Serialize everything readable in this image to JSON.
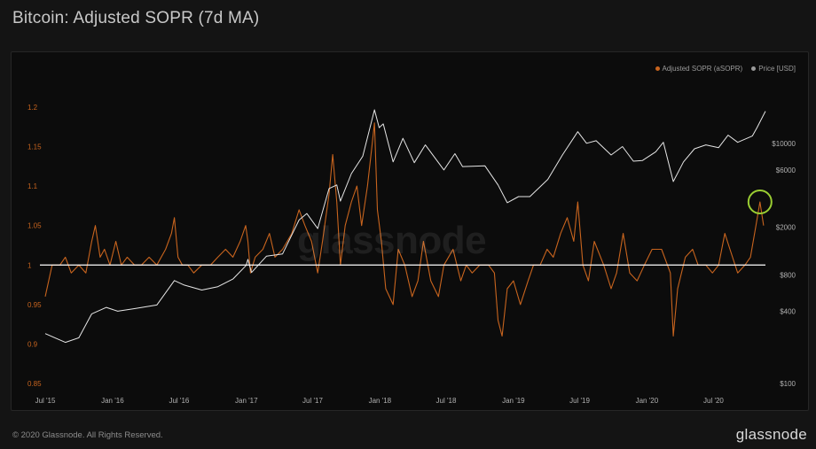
{
  "title": "Bitcoin: Adjusted SOPR (7d MA)",
  "watermark": "glassnode",
  "footer": {
    "copyright": "© 2020 Glassnode. All Rights Reserved.",
    "brand": "glassnode"
  },
  "colors": {
    "sopr": "#c8641e",
    "price": "#e6e6e6",
    "baseline": "#ffffff",
    "highlight": "#9acd32",
    "left_axis_text": "#c8641e",
    "right_axis_text": "#b0b0b0",
    "x_axis_text": "#b0b0b0"
  },
  "legend": [
    {
      "label": "Adjusted SOPR (aSOPR)",
      "color": "#c8641e"
    },
    {
      "label": "Price [USD]",
      "color": "#9a9a9a"
    }
  ],
  "chart_data": {
    "type": "line",
    "x_range": [
      "2015-07-01",
      "2020-11-20"
    ],
    "x_ticks": [
      {
        "date": "2015-07-01",
        "label": "Jul '15"
      },
      {
        "date": "2016-01-01",
        "label": "Jan '16"
      },
      {
        "date": "2016-07-01",
        "label": "Jul '16"
      },
      {
        "date": "2017-01-01",
        "label": "Jan '17"
      },
      {
        "date": "2017-07-01",
        "label": "Jul '17"
      },
      {
        "date": "2018-01-01",
        "label": "Jan '18"
      },
      {
        "date": "2018-07-01",
        "label": "Jul '18"
      },
      {
        "date": "2019-01-01",
        "label": "Jan '19"
      },
      {
        "date": "2019-07-01",
        "label": "Jul '19"
      },
      {
        "date": "2020-01-01",
        "label": "Jan '20"
      },
      {
        "date": "2020-07-01",
        "label": "Jul '20"
      }
    ],
    "left_axis": {
      "ylim": [
        0.85,
        1.2
      ],
      "ticks": [
        {
          "value": 0.85,
          "label": "0.85"
        },
        {
          "value": 0.9,
          "label": "0.9"
        },
        {
          "value": 0.95,
          "label": "0.95"
        },
        {
          "value": 1.0,
          "label": "1"
        },
        {
          "value": 1.05,
          "label": "1.05"
        },
        {
          "value": 1.1,
          "label": "1.1"
        },
        {
          "value": 1.15,
          "label": "1.15"
        },
        {
          "value": 1.2,
          "label": "1.2"
        }
      ]
    },
    "right_axis": {
      "scale": "log",
      "ylim": [
        100,
        20000
      ],
      "ticks": [
        {
          "value": 100,
          "label": "$100"
        },
        {
          "value": 400,
          "label": "$400"
        },
        {
          "value": 800,
          "label": "$800"
        },
        {
          "value": 2000,
          "label": "$2000"
        },
        {
          "value": 6000,
          "label": "$6000"
        },
        {
          "value": 10000,
          "label": "$10000"
        }
      ]
    },
    "reference_line": {
      "value": 1.0,
      "axis": "left"
    },
    "highlight": {
      "date": "2020-11-05",
      "value": 1.08,
      "shape": "circle"
    },
    "series": [
      {
        "name": "Adjusted SOPR (aSOPR)",
        "axis": "left",
        "points": [
          [
            "2015-07-01",
            0.96
          ],
          [
            "2015-07-20",
            1.0
          ],
          [
            "2015-08-10",
            1.0
          ],
          [
            "2015-08-25",
            1.01
          ],
          [
            "2015-09-10",
            0.99
          ],
          [
            "2015-10-01",
            1.0
          ],
          [
            "2015-10-20",
            0.99
          ],
          [
            "2015-11-05",
            1.03
          ],
          [
            "2015-11-15",
            1.05
          ],
          [
            "2015-11-28",
            1.01
          ],
          [
            "2015-12-10",
            1.02
          ],
          [
            "2015-12-25",
            1.0
          ],
          [
            "2016-01-10",
            1.03
          ],
          [
            "2016-01-25",
            1.0
          ],
          [
            "2016-02-10",
            1.01
          ],
          [
            "2016-03-01",
            1.0
          ],
          [
            "2016-03-20",
            1.0
          ],
          [
            "2016-04-10",
            1.01
          ],
          [
            "2016-05-01",
            1.0
          ],
          [
            "2016-05-25",
            1.02
          ],
          [
            "2016-06-10",
            1.04
          ],
          [
            "2016-06-18",
            1.06
          ],
          [
            "2016-06-28",
            1.01
          ],
          [
            "2016-07-10",
            1.0
          ],
          [
            "2016-07-25",
            1.0
          ],
          [
            "2016-08-10",
            0.99
          ],
          [
            "2016-09-01",
            1.0
          ],
          [
            "2016-09-25",
            1.0
          ],
          [
            "2016-10-15",
            1.01
          ],
          [
            "2016-11-05",
            1.02
          ],
          [
            "2016-11-25",
            1.01
          ],
          [
            "2016-12-15",
            1.03
          ],
          [
            "2016-12-30",
            1.05
          ],
          [
            "2017-01-05",
            1.03
          ],
          [
            "2017-01-12",
            0.99
          ],
          [
            "2017-01-25",
            1.01
          ],
          [
            "2017-02-15",
            1.02
          ],
          [
            "2017-03-05",
            1.04
          ],
          [
            "2017-03-20",
            1.01
          ],
          [
            "2017-04-10",
            1.02
          ],
          [
            "2017-05-05",
            1.04
          ],
          [
            "2017-05-25",
            1.07
          ],
          [
            "2017-06-10",
            1.05
          ],
          [
            "2017-06-28",
            1.03
          ],
          [
            "2017-07-15",
            0.99
          ],
          [
            "2017-07-28",
            1.03
          ],
          [
            "2017-08-15",
            1.09
          ],
          [
            "2017-08-25",
            1.14
          ],
          [
            "2017-09-05",
            1.08
          ],
          [
            "2017-09-15",
            1.0
          ],
          [
            "2017-09-28",
            1.05
          ],
          [
            "2017-10-15",
            1.08
          ],
          [
            "2017-10-30",
            1.1
          ],
          [
            "2017-11-12",
            1.05
          ],
          [
            "2017-11-28",
            1.1
          ],
          [
            "2017-12-10",
            1.15
          ],
          [
            "2017-12-17",
            1.18
          ],
          [
            "2017-12-25",
            1.07
          ],
          [
            "2018-01-05",
            1.03
          ],
          [
            "2018-01-17",
            0.97
          ],
          [
            "2018-02-06",
            0.95
          ],
          [
            "2018-02-20",
            1.02
          ],
          [
            "2018-03-10",
            1.0
          ],
          [
            "2018-03-30",
            0.96
          ],
          [
            "2018-04-15",
            0.98
          ],
          [
            "2018-04-30",
            1.03
          ],
          [
            "2018-05-20",
            0.98
          ],
          [
            "2018-06-10",
            0.96
          ],
          [
            "2018-06-25",
            1.0
          ],
          [
            "2018-07-20",
            1.02
          ],
          [
            "2018-08-10",
            0.98
          ],
          [
            "2018-08-25",
            1.0
          ],
          [
            "2018-09-10",
            0.99
          ],
          [
            "2018-10-01",
            1.0
          ],
          [
            "2018-10-25",
            1.0
          ],
          [
            "2018-11-10",
            0.99
          ],
          [
            "2018-11-20",
            0.93
          ],
          [
            "2018-12-01",
            0.91
          ],
          [
            "2018-12-15",
            0.97
          ],
          [
            "2019-01-01",
            0.98
          ],
          [
            "2019-01-20",
            0.95
          ],
          [
            "2019-02-10",
            0.98
          ],
          [
            "2019-02-25",
            1.0
          ],
          [
            "2019-03-15",
            1.0
          ],
          [
            "2019-04-03",
            1.02
          ],
          [
            "2019-04-20",
            1.01
          ],
          [
            "2019-05-10",
            1.04
          ],
          [
            "2019-05-28",
            1.06
          ],
          [
            "2019-06-15",
            1.03
          ],
          [
            "2019-06-26",
            1.08
          ],
          [
            "2019-07-10",
            1.0
          ],
          [
            "2019-07-25",
            0.98
          ],
          [
            "2019-08-10",
            1.03
          ],
          [
            "2019-09-05",
            1.0
          ],
          [
            "2019-09-25",
            0.97
          ],
          [
            "2019-10-10",
            0.99
          ],
          [
            "2019-10-28",
            1.04
          ],
          [
            "2019-11-15",
            0.99
          ],
          [
            "2019-12-05",
            0.98
          ],
          [
            "2019-12-25",
            1.0
          ],
          [
            "2020-01-15",
            1.02
          ],
          [
            "2020-02-10",
            1.02
          ],
          [
            "2020-03-05",
            0.99
          ],
          [
            "2020-03-13",
            0.91
          ],
          [
            "2020-03-25",
            0.97
          ],
          [
            "2020-04-15",
            1.01
          ],
          [
            "2020-05-05",
            1.02
          ],
          [
            "2020-05-20",
            1.0
          ],
          [
            "2020-06-10",
            1.0
          ],
          [
            "2020-06-28",
            0.99
          ],
          [
            "2020-07-15",
            1.0
          ],
          [
            "2020-08-01",
            1.04
          ],
          [
            "2020-08-15",
            1.02
          ],
          [
            "2020-09-05",
            0.99
          ],
          [
            "2020-09-25",
            1.0
          ],
          [
            "2020-10-10",
            1.01
          ],
          [
            "2020-10-25",
            1.05
          ],
          [
            "2020-11-05",
            1.08
          ],
          [
            "2020-11-15",
            1.05
          ]
        ]
      },
      {
        "name": "Price [USD]",
        "axis": "right",
        "points": [
          [
            "2015-07-01",
            260
          ],
          [
            "2015-08-25",
            220
          ],
          [
            "2015-10-01",
            240
          ],
          [
            "2015-11-05",
            380
          ],
          [
            "2015-12-15",
            430
          ],
          [
            "2016-01-15",
            400
          ],
          [
            "2016-03-01",
            420
          ],
          [
            "2016-05-01",
            450
          ],
          [
            "2016-06-18",
            720
          ],
          [
            "2016-07-15",
            660
          ],
          [
            "2016-09-01",
            600
          ],
          [
            "2016-10-15",
            640
          ],
          [
            "2016-11-25",
            740
          ],
          [
            "2016-12-31",
            960
          ],
          [
            "2017-01-05",
            1080
          ],
          [
            "2017-01-15",
            840
          ],
          [
            "2017-02-25",
            1150
          ],
          [
            "2017-04-10",
            1200
          ],
          [
            "2017-05-25",
            2300
          ],
          [
            "2017-06-15",
            2600
          ],
          [
            "2017-07-15",
            1950
          ],
          [
            "2017-08-15",
            4200
          ],
          [
            "2017-09-05",
            4500
          ],
          [
            "2017-09-15",
            3300
          ],
          [
            "2017-10-15",
            5600
          ],
          [
            "2017-11-15",
            7800
          ],
          [
            "2017-12-17",
            19000
          ],
          [
            "2017-12-30",
            13500
          ],
          [
            "2018-01-10",
            14500
          ],
          [
            "2018-02-06",
            7000
          ],
          [
            "2018-03-05",
            11000
          ],
          [
            "2018-04-05",
            6900
          ],
          [
            "2018-05-05",
            9700
          ],
          [
            "2018-06-25",
            6000
          ],
          [
            "2018-07-25",
            8200
          ],
          [
            "2018-08-15",
            6400
          ],
          [
            "2018-10-15",
            6500
          ],
          [
            "2018-11-20",
            4500
          ],
          [
            "2018-12-15",
            3200
          ],
          [
            "2019-01-15",
            3600
          ],
          [
            "2019-02-15",
            3600
          ],
          [
            "2019-04-05",
            5000
          ],
          [
            "2019-05-15",
            8000
          ],
          [
            "2019-06-26",
            12500
          ],
          [
            "2019-07-20",
            10000
          ],
          [
            "2019-08-15",
            10500
          ],
          [
            "2019-09-25",
            8000
          ],
          [
            "2019-10-26",
            9400
          ],
          [
            "2019-11-25",
            7100
          ],
          [
            "2019-12-20",
            7200
          ],
          [
            "2020-01-25",
            8500
          ],
          [
            "2020-02-15",
            10200
          ],
          [
            "2020-03-13",
            4800
          ],
          [
            "2020-04-10",
            7000
          ],
          [
            "2020-05-10",
            9000
          ],
          [
            "2020-06-10",
            9700
          ],
          [
            "2020-07-15",
            9200
          ],
          [
            "2020-08-10",
            11700
          ],
          [
            "2020-09-05",
            10200
          ],
          [
            "2020-10-15",
            11500
          ],
          [
            "2020-10-28",
            13500
          ],
          [
            "2020-11-20",
            18500
          ]
        ]
      }
    ]
  }
}
